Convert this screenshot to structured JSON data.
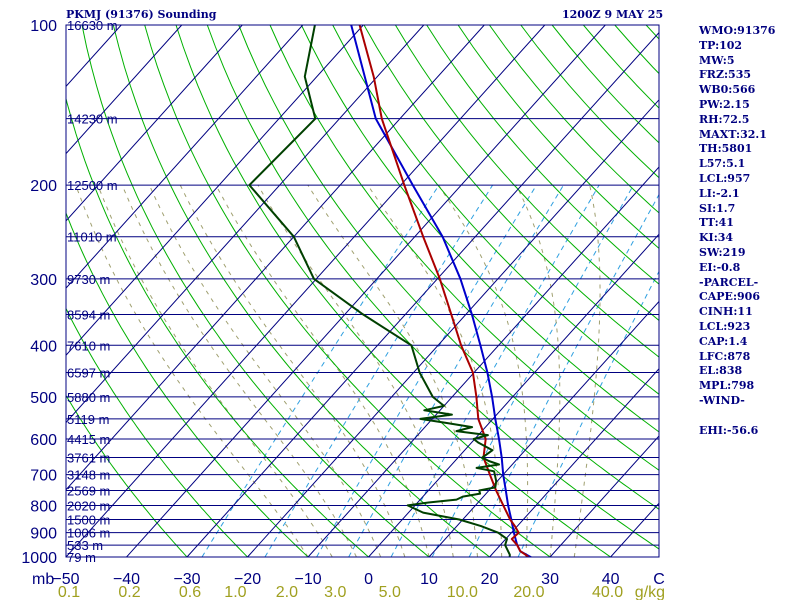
{
  "header": {
    "station": "PKMJ (91376) Sounding",
    "time": "1200Z  9 MAY 25"
  },
  "indices": [
    "WMO:91376",
    "TP:102",
    "MW:5",
    "FRZ:535",
    "WB0:566",
    "PW:2.15",
    "RH:72.5",
    "MAXT:32.1",
    "TH:5801",
    "L57:5.1",
    "LCL:957",
    "LI:-2.1",
    "SI:1.7",
    "TT:41",
    "KI:34",
    "SW:219",
    "EI:-0.8",
    "-PARCEL-",
    "CAPE:906",
    "CINH:11",
    "LCL:923",
    "CAP:1.4",
    "LFC:878",
    "EL:838",
    "MPL:798",
    "-WIND-",
    "",
    "EHI:-56.6"
  ],
  "colors": {
    "frame": "#000080",
    "isobar": "#000080",
    "isotherm": "#000080",
    "dry_adiabat": "#00b000",
    "moist_adiabat": "#a0a070",
    "mixing_ratio": "#30a0e0",
    "temperature": "#aa0000",
    "dewpoint": "#004000",
    "parcel": "#0000cc",
    "axis_text": "#000080",
    "mixing_text": "#a0a020"
  },
  "chart_data": {
    "type": "skew-t",
    "ylabel": "mb",
    "pressure_ticks": [
      100,
      200,
      300,
      400,
      500,
      600,
      700,
      800,
      900,
      1000
    ],
    "pressure_range": [
      1000,
      100
    ],
    "temperature_ticks": [
      "-50",
      "-40",
      "-30",
      "-20",
      "-10",
      "0",
      "10",
      "20",
      "30",
      "40",
      "C"
    ],
    "temperature_range": [
      -50,
      48
    ],
    "mixing_ratio_ticks": [
      "0.1",
      "0.2",
      "0.6",
      "1.0",
      "2.0",
      "3.0",
      "5.0",
      "10.0",
      "20.0",
      "40.0",
      "g/kg"
    ],
    "mixing_ratio_label_positions": [
      -49.5,
      -39.5,
      -29.5,
      -22.0,
      -13.5,
      -5.5,
      3.5,
      15.5,
      26.5,
      39.5,
      46.5
    ],
    "mixing_ratio_lines": [
      0.4,
      1,
      2,
      3,
      5,
      8,
      12,
      20
    ],
    "height_labels": [
      {
        "p": 100,
        "text": "16630 m"
      },
      {
        "p": 150,
        "text": "14230 m"
      },
      {
        "p": 200,
        "text": "12500 m"
      },
      {
        "p": 250,
        "text": "11010 m"
      },
      {
        "p": 300,
        "text": "9730 m"
      },
      {
        "p": 350,
        "text": "8594 m"
      },
      {
        "p": 400,
        "text": "7610 m"
      },
      {
        "p": 450,
        "text": "6597 m"
      },
      {
        "p": 500,
        "text": "5880 m"
      },
      {
        "p": 550,
        "text": "5119 m"
      },
      {
        "p": 600,
        "text": "4415 m"
      },
      {
        "p": 650,
        "text": "3761 m"
      },
      {
        "p": 700,
        "text": "3148 m"
      },
      {
        "p": 750,
        "text": "2569 m"
      },
      {
        "p": 800,
        "text": "2020 m"
      },
      {
        "p": 850,
        "text": "1500 m"
      },
      {
        "p": 900,
        "text": "1006 m"
      },
      {
        "p": 950,
        "text": "533 m"
      },
      {
        "p": 1000,
        "text": "79 m"
      }
    ],
    "temperature_profile": [
      [
        1002,
        26.6
      ],
      [
        990,
        25.6
      ],
      [
        975,
        24.2
      ],
      [
        950,
        22.8
      ],
      [
        925,
        21.0
      ],
      [
        900,
        21.2
      ],
      [
        875,
        19.6
      ],
      [
        850,
        17.8
      ],
      [
        800,
        14.6
      ],
      [
        750,
        11.2
      ],
      [
        700,
        7.8
      ],
      [
        650,
        4.2
      ],
      [
        600,
        1.8
      ],
      [
        550,
        -2.4
      ],
      [
        500,
        -6.0
      ],
      [
        450,
        -10.2
      ],
      [
        400,
        -16.2
      ],
      [
        350,
        -22.4
      ],
      [
        300,
        -29.6
      ],
      [
        250,
        -38.6
      ],
      [
        200,
        -49.4
      ],
      [
        150,
        -63.0
      ],
      [
        125,
        -70.6
      ],
      [
        100,
        -80.6
      ]
    ],
    "dewpoint_profile": [
      [
        1002,
        23.4
      ],
      [
        990,
        23.0
      ],
      [
        975,
        22.2
      ],
      [
        950,
        20.8
      ],
      [
        925,
        20.2
      ],
      [
        900,
        17.8
      ],
      [
        875,
        14.0
      ],
      [
        850,
        9.4
      ],
      [
        825,
        2.4
      ],
      [
        800,
        -1.2
      ],
      [
        790,
        1.8
      ],
      [
        780,
        6.0
      ],
      [
        770,
        6.6
      ],
      [
        760,
        9.0
      ],
      [
        750,
        8.4
      ],
      [
        740,
        10.6
      ],
      [
        720,
        9.8
      ],
      [
        700,
        8.6
      ],
      [
        690,
        8.0
      ],
      [
        680,
        4.6
      ],
      [
        670,
        7.8
      ],
      [
        660,
        5.6
      ],
      [
        650,
        4.0
      ],
      [
        630,
        4.6
      ],
      [
        610,
        1.2
      ],
      [
        600,
        -0.2
      ],
      [
        590,
        1.6
      ],
      [
        580,
        -4.2
      ],
      [
        570,
        -2.2
      ],
      [
        560,
        -7.0
      ],
      [
        550,
        -12.0
      ],
      [
        540,
        -7.4
      ],
      [
        530,
        -12.6
      ],
      [
        520,
        -10.0
      ],
      [
        500,
        -13.2
      ],
      [
        450,
        -19.0
      ],
      [
        400,
        -24.4
      ],
      [
        350,
        -37.0
      ],
      [
        300,
        -50.4
      ],
      [
        250,
        -60.0
      ],
      [
        200,
        -75.0
      ],
      [
        150,
        -74.0
      ],
      [
        125,
        -82.0
      ],
      [
        100,
        -88.0
      ]
    ],
    "parcel_profile": [
      [
        1002,
        27.0
      ],
      [
        975,
        24.2
      ],
      [
        950,
        22.8
      ],
      [
        900,
        20.4
      ],
      [
        850,
        18.0
      ],
      [
        800,
        15.4
      ],
      [
        750,
        12.8
      ],
      [
        700,
        10.0
      ],
      [
        650,
        7.2
      ],
      [
        600,
        4.0
      ],
      [
        550,
        0.4
      ],
      [
        500,
        -3.4
      ],
      [
        450,
        -7.8
      ],
      [
        400,
        -13.0
      ],
      [
        350,
        -19.0
      ],
      [
        300,
        -26.2
      ],
      [
        250,
        -35.4
      ],
      [
        200,
        -48.0
      ],
      [
        150,
        -64.0
      ],
      [
        100,
        -82.0
      ]
    ]
  }
}
